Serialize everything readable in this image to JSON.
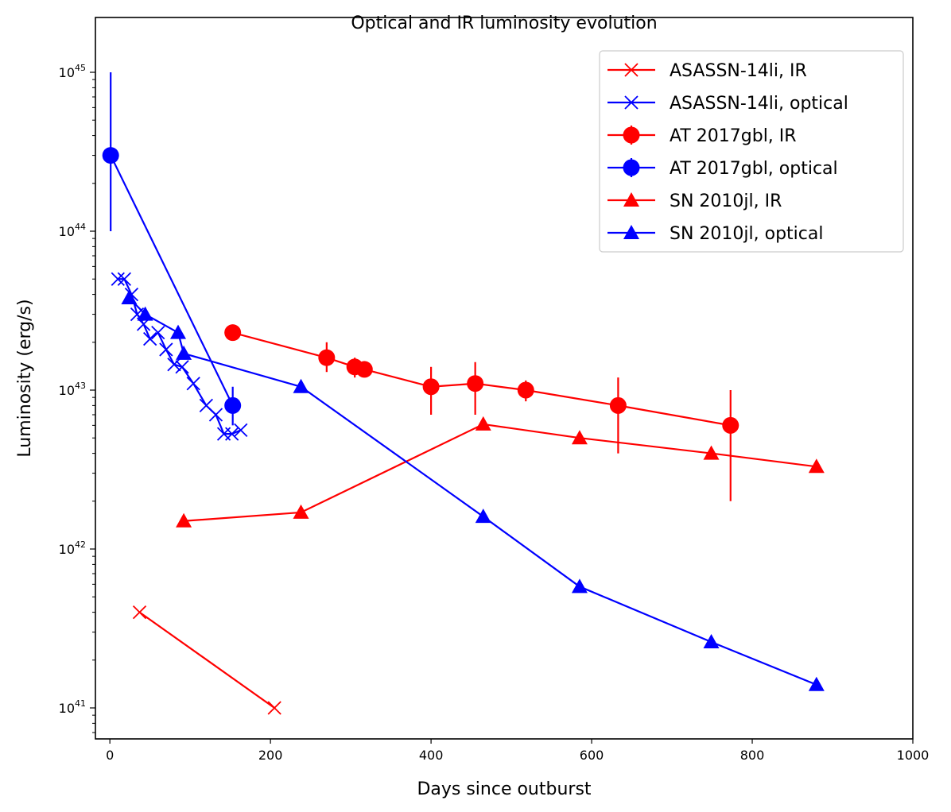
{
  "chart_data": {
    "type": "line",
    "title": "Optical and IR luminosity evolution",
    "xlabel": "Days since outburst",
    "ylabel": "Luminosity (erg/s)",
    "xscale": "linear",
    "yscale": "log",
    "xlim": [
      -18,
      1000
    ],
    "ylim": [
      6.2e+40,
      1.8e+45
    ],
    "xticks": [
      0,
      200,
      400,
      600,
      800,
      1000
    ],
    "xtick_labels": [
      "0",
      "200",
      "400",
      "600",
      "800",
      "1000"
    ],
    "yticks": [
      1e+41,
      1e+42,
      1e+43,
      1e+44,
      1e+45
    ],
    "ytick_labels": [
      {
        "base": "10",
        "exp": "41"
      },
      {
        "base": "10",
        "exp": "42"
      },
      {
        "base": "10",
        "exp": "43"
      },
      {
        "base": "10",
        "exp": "44"
      },
      {
        "base": "10",
        "exp": "45"
      }
    ],
    "legend_position": "top-right",
    "series": [
      {
        "name": "ASASSN-14li, IR",
        "color": "#ff0000",
        "marker": "x",
        "x": [
          37,
          205
        ],
        "y": [
          4e+41,
          1e+41
        ]
      },
      {
        "name": "ASASSN-14li, optical",
        "color": "#0000ff",
        "marker": "x",
        "x": [
          10,
          18,
          27,
          34,
          42,
          50,
          60,
          70,
          80,
          90,
          104,
          120,
          132,
          142,
          152,
          163
        ],
        "y": [
          5e+43,
          5e+43,
          4e+43,
          3e+43,
          2.6e+43,
          2.1e+43,
          2.3e+43,
          1.8e+43,
          1.45e+43,
          1.4e+43,
          1.1e+43,
          8e+42,
          7e+42,
          5.3e+42,
          5.3e+42,
          5.6e+42
        ]
      },
      {
        "name": "AT 2017gbl, IR",
        "color": "#ff0000",
        "marker": "o",
        "x": [
          153,
          270,
          305,
          317,
          400,
          455,
          518,
          633,
          773
        ],
        "y": [
          2.3e+43,
          1.6e+43,
          1.4e+43,
          1.35e+43,
          1.05e+43,
          1.1e+43,
          1e+43,
          8e+42,
          6e+42
        ],
        "yerr_low": [
          2.3e+43,
          1.3e+43,
          1.2e+43,
          1.35e+43,
          7e+42,
          7e+42,
          8.5e+42,
          4e+42,
          2e+42
        ],
        "yerr_high": [
          2.3e+43,
          2e+43,
          1.6e+43,
          1.35e+43,
          1.4e+43,
          1.5e+43,
          1.15e+43,
          1.2e+43,
          1e+43
        ]
      },
      {
        "name": "AT 2017gbl, optical",
        "color": "#0000ff",
        "marker": "o",
        "x": [
          1,
          153
        ],
        "y": [
          3e+44,
          8e+42
        ],
        "yerr_low": [
          1e+44,
          6e+42
        ],
        "yerr_high": [
          1e+45,
          1.05e+43
        ]
      },
      {
        "name": "SN 2010jl, IR",
        "color": "#ff0000",
        "marker": "^",
        "x": [
          92,
          238,
          465,
          585,
          749,
          880
        ],
        "y": [
          1.5e+42,
          1.7e+42,
          6.1e+42,
          5e+42,
          4e+42,
          3.3e+42
        ]
      },
      {
        "name": "SN 2010jl, optical",
        "color": "#0000ff",
        "marker": "^",
        "x": [
          24,
          44,
          85,
          92,
          238,
          465,
          585,
          749,
          880
        ],
        "y": [
          3.8e+43,
          3e+43,
          2.3e+43,
          1.7e+43,
          1.05e+43,
          1.6e+42,
          5.8e+41,
          2.6e+41,
          1.4e+41
        ]
      }
    ]
  }
}
